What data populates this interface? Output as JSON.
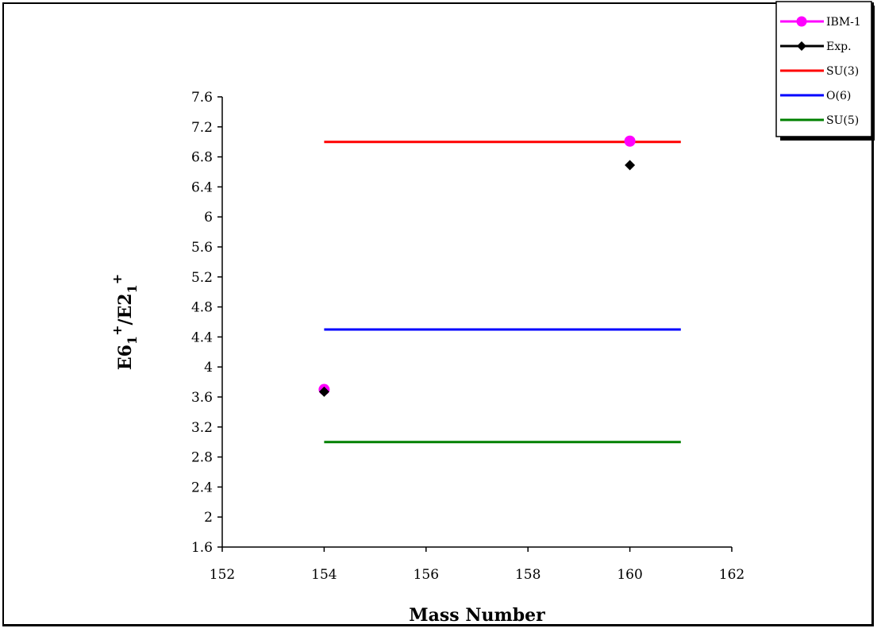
{
  "chart_data": {
    "type": "scatter",
    "xlabel": "Mass Number",
    "ylabel": {
      "main": "E6",
      "sub1": "1",
      "sup1": "+",
      "mid": "/E2",
      "sub2": "1",
      "sup2": "+"
    },
    "xlim": [
      152,
      162
    ],
    "ylim": [
      1.6,
      7.6
    ],
    "x_ticks": [
      "152",
      "154",
      "156",
      "158",
      "160",
      "162"
    ],
    "y_ticks": [
      "1.6",
      "2",
      "2.4",
      "2.8",
      "3.2",
      "3.6",
      "4",
      "4.4",
      "4.8",
      "5.2",
      "5.6",
      "6",
      "6.4",
      "6.8",
      "7.2",
      "7.6"
    ],
    "grid": false,
    "legend_position": "top-right",
    "series": [
      {
        "name": "IBM-1",
        "color": "#ff00ff",
        "marker": "circle",
        "points": [
          [
            154,
            3.7
          ],
          [
            160,
            7.01
          ]
        ]
      },
      {
        "name": "Exp.",
        "color": "#000000",
        "marker": "diamond",
        "points": [
          [
            154,
            3.67
          ],
          [
            160,
            6.69
          ]
        ]
      },
      {
        "name": "SU(3)",
        "color": "#ff0000",
        "marker": "line",
        "points": [
          [
            154,
            7.0
          ],
          [
            161,
            7.0
          ]
        ]
      },
      {
        "name": "O(6)",
        "color": "#0000ff",
        "marker": "line",
        "points": [
          [
            154,
            4.5
          ],
          [
            161,
            4.5
          ]
        ]
      },
      {
        "name": "SU(5)",
        "color": "#008000",
        "marker": "line",
        "points": [
          [
            154,
            3.0
          ],
          [
            161,
            3.0
          ]
        ]
      }
    ]
  }
}
